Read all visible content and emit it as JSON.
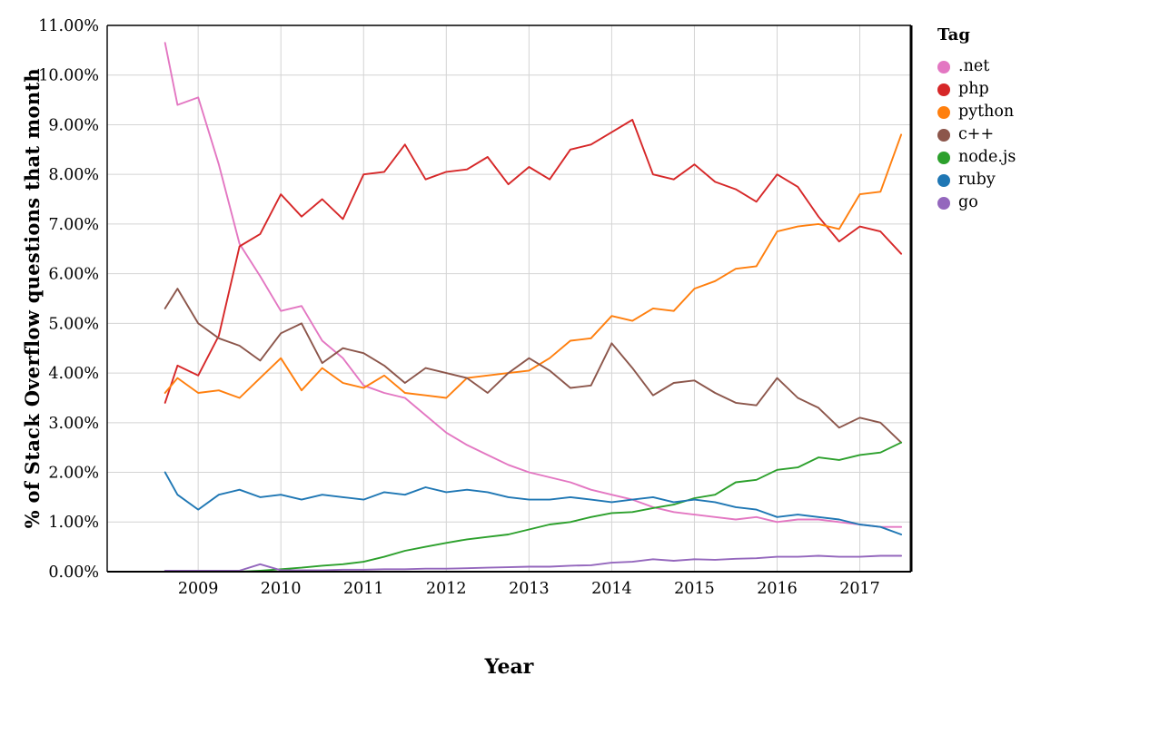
{
  "axes": {
    "x_tick_labels": [
      "2009",
      "2010",
      "2011",
      "2012",
      "2013",
      "2014",
      "2015",
      "2016",
      "2017"
    ],
    "y_tick_labels": [
      "0.00%",
      "1.00%",
      "2.00%",
      "3.00%",
      "4.00%",
      "5.00%",
      "6.00%",
      "7.00%",
      "8.00%",
      "9.00%",
      "10.00%",
      "11.00%"
    ]
  },
  "colors": {
    "gridline": "#d4d4d4",
    "frame": "#000000",
    "text": "#000000"
  },
  "chart_data": {
    "type": "line",
    "title": "",
    "xlabel": "Year",
    "ylabel": "% of Stack Overflow questions that month",
    "legend_title": "Tag",
    "legend_position": "right",
    "grid": true,
    "xlim": [
      2007.9,
      2017.62
    ],
    "ylim": [
      0,
      11
    ],
    "x_ticks": [
      2009,
      2010,
      2011,
      2012,
      2013,
      2014,
      2015,
      2016,
      2017
    ],
    "y_ticks": [
      0,
      1,
      2,
      3,
      4,
      5,
      6,
      7,
      8,
      9,
      10,
      11
    ],
    "x": [
      2008.6,
      2008.75,
      2009,
      2009.25,
      2009.5,
      2009.75,
      2010,
      2010.25,
      2010.5,
      2010.75,
      2011,
      2011.25,
      2011.5,
      2011.75,
      2012,
      2012.25,
      2012.5,
      2012.75,
      2013,
      2013.25,
      2013.5,
      2013.75,
      2014,
      2014.25,
      2014.5,
      2014.75,
      2015,
      2015.25,
      2015.5,
      2015.75,
      2016,
      2016.25,
      2016.5,
      2016.75,
      2017,
      2017.25,
      2017.5
    ],
    "series": [
      {
        "name": ".net",
        "color": "#e377c2",
        "values": [
          10.65,
          9.4,
          9.55,
          8.2,
          6.6,
          5.95,
          5.25,
          5.35,
          4.65,
          4.3,
          3.75,
          3.6,
          3.5,
          3.15,
          2.8,
          2.55,
          2.35,
          2.15,
          2.0,
          1.9,
          1.8,
          1.65,
          1.55,
          1.45,
          1.3,
          1.2,
          1.15,
          1.1,
          1.05,
          1.1,
          1.0,
          1.05,
          1.05,
          1.0,
          0.95,
          0.9,
          0.9
        ]
      },
      {
        "name": "php",
        "color": "#d62728",
        "values": [
          3.4,
          4.15,
          3.95,
          4.75,
          6.55,
          6.8,
          7.6,
          7.15,
          7.5,
          7.1,
          8.0,
          8.05,
          8.6,
          7.9,
          8.05,
          8.1,
          8.35,
          7.8,
          8.15,
          7.9,
          8.5,
          8.6,
          8.85,
          9.1,
          8.0,
          7.9,
          8.2,
          7.85,
          7.7,
          7.45,
          8.0,
          7.75,
          7.15,
          6.65,
          6.95,
          6.85,
          6.4
        ]
      },
      {
        "name": "python",
        "color": "#ff7f0e",
        "values": [
          3.6,
          3.9,
          3.6,
          3.65,
          3.5,
          3.9,
          4.3,
          3.65,
          4.1,
          3.8,
          3.7,
          3.95,
          3.6,
          3.55,
          3.5,
          3.9,
          3.95,
          4.0,
          4.05,
          4.3,
          4.65,
          4.7,
          5.15,
          5.05,
          5.3,
          5.25,
          5.7,
          5.85,
          6.1,
          6.15,
          6.85,
          6.95,
          7.0,
          6.9,
          7.6,
          7.65,
          8.8
        ]
      },
      {
        "name": "c++",
        "color": "#8c564b",
        "values": [
          5.3,
          5.7,
          5.0,
          4.7,
          4.55,
          4.25,
          4.8,
          5.0,
          4.2,
          4.5,
          4.4,
          4.15,
          3.8,
          4.1,
          4.0,
          3.9,
          3.6,
          4.0,
          4.3,
          4.05,
          3.7,
          3.75,
          4.6,
          4.1,
          3.55,
          3.8,
          3.85,
          3.6,
          3.4,
          3.35,
          3.9,
          3.5,
          3.3,
          2.9,
          3.1,
          3.0,
          2.6
        ]
      },
      {
        "name": "node.js",
        "color": "#2ca02c",
        "values": [
          0.0,
          0.0,
          0.0,
          0.0,
          0.0,
          0.02,
          0.05,
          0.08,
          0.12,
          0.15,
          0.2,
          0.3,
          0.42,
          0.5,
          0.58,
          0.65,
          0.7,
          0.75,
          0.85,
          0.95,
          1.0,
          1.1,
          1.18,
          1.2,
          1.28,
          1.35,
          1.48,
          1.55,
          1.8,
          1.85,
          2.05,
          2.1,
          2.3,
          2.25,
          2.35,
          2.4,
          2.6
        ]
      },
      {
        "name": "ruby",
        "color": "#1f77b4",
        "values": [
          2.0,
          1.55,
          1.25,
          1.55,
          1.65,
          1.5,
          1.55,
          1.45,
          1.55,
          1.5,
          1.45,
          1.6,
          1.55,
          1.7,
          1.6,
          1.65,
          1.6,
          1.5,
          1.45,
          1.45,
          1.5,
          1.45,
          1.4,
          1.45,
          1.5,
          1.4,
          1.45,
          1.4,
          1.3,
          1.25,
          1.1,
          1.15,
          1.1,
          1.05,
          0.95,
          0.9,
          0.75
        ]
      },
      {
        "name": "go",
        "color": "#9467bd",
        "values": [
          0.02,
          0.02,
          0.02,
          0.02,
          0.02,
          0.15,
          0.03,
          0.03,
          0.03,
          0.04,
          0.04,
          0.05,
          0.05,
          0.06,
          0.06,
          0.07,
          0.08,
          0.09,
          0.1,
          0.1,
          0.12,
          0.13,
          0.18,
          0.2,
          0.25,
          0.22,
          0.25,
          0.24,
          0.26,
          0.27,
          0.3,
          0.3,
          0.32,
          0.3,
          0.3,
          0.32,
          0.32
        ]
      }
    ]
  }
}
